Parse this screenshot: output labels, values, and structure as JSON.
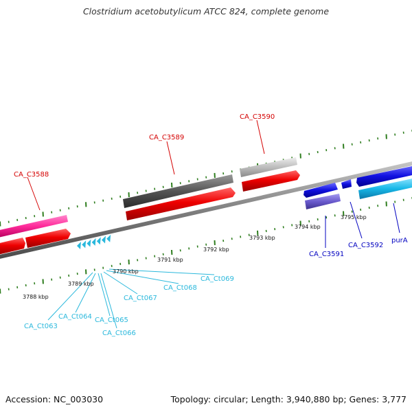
{
  "title": "Clostridium acetobutylicum ATCC 824, complete genome",
  "footer": {
    "accession": "Accession: NC_003030",
    "stats": "Topology: circular; Length: 3,940,880 bp; Genes: 3,777"
  },
  "scale_labels": [
    "3788 kbp",
    "3789 kbp",
    "3790 kbp",
    "3791 kbp",
    "3792 kbp",
    "3793 kbp",
    "3794 kbp",
    "3795 kbp"
  ],
  "gene_labels": {
    "forward_strand": [
      "CA_C3588",
      "CA_C3589",
      "CA_C3590"
    ],
    "reverse_strand": [
      "CA_C3591",
      "CA_C3592",
      "purA"
    ],
    "trna": [
      "CA_Ct063",
      "CA_Ct064",
      "CA_Ct065",
      "CA_Ct066",
      "CA_Ct067",
      "CA_Ct068",
      "CA_Ct069"
    ]
  },
  "colors": {
    "forward_label": "#d40000",
    "reverse_label": "#0000c0",
    "trna_label": "#2ab8dc",
    "backbone": "#808080",
    "tick": "#2e7d1e",
    "cds_red": "#ee0000",
    "gene_pink": "#ff3aa0",
    "gene_dark": "#555555",
    "gene_light": "#bdbdbd",
    "gene_blue": "#1010e0",
    "gene_cyan": "#18b8e8",
    "gene_violet": "#6a5acd"
  }
}
